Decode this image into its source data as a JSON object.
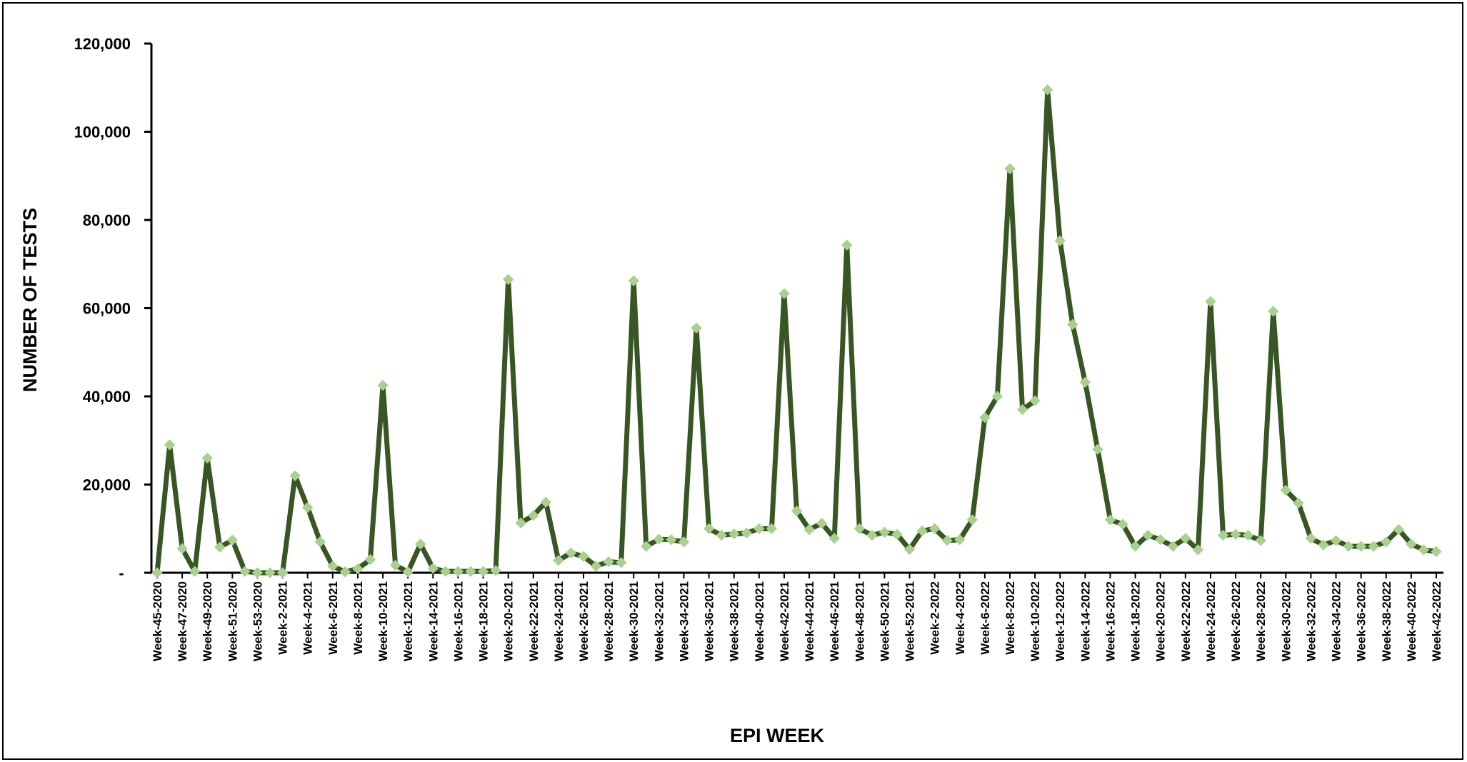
{
  "chart_data": {
    "type": "line",
    "xlabel": "EPI WEEK",
    "ylabel": "NUMBER OF TESTS",
    "ylim": [
      0,
      120000
    ],
    "yticks": [
      {
        "value": 0,
        "label": "-"
      },
      {
        "value": 20000,
        "label": "20,000"
      },
      {
        "value": 40000,
        "label": "40,000"
      },
      {
        "value": 60000,
        "label": "60,000"
      },
      {
        "value": 80000,
        "label": "80,000"
      },
      {
        "value": 100000,
        "label": "100,000"
      },
      {
        "value": 120000,
        "label": "120,000"
      }
    ],
    "grid": false,
    "legend": "none",
    "colors": {
      "line": "#375623",
      "marker": "#a9d08e",
      "axis": "#000000"
    },
    "x": [
      "Week-45-2020",
      "Week-46-2020",
      "Week-47-2020",
      "Week-48-2020",
      "Week-49-2020",
      "Week-50-2020",
      "Week-51-2020",
      "Week-52-2020",
      "Week-53-2020",
      "Week-1-2021",
      "Week-2-2021",
      "Week-3-2021",
      "Week-4-2021",
      "Week-5-2021",
      "Week-6-2021",
      "Week-7-2021",
      "Week-8-2021",
      "Week-9-2021",
      "Week-10-2021",
      "Week-11-2021",
      "Week-12-2021",
      "Week-13-2021",
      "Week-14-2021",
      "Week-15-2021",
      "Week-16-2021",
      "Week-17-2021",
      "Week-18-2021",
      "Week-19-2021",
      "Week-20-2021",
      "Week-21-2021",
      "Week-22-2021",
      "Week-23-2021",
      "Week-24-2021",
      "Week-25-2021",
      "Week-26-2021",
      "Week-27-2021",
      "Week-28-2021",
      "Week-29-2021",
      "Week-30-2021",
      "Week-31-2021",
      "Week-32-2021",
      "Week-33-2021",
      "Week-34-2021",
      "Week-35-2021",
      "Week-36-2021",
      "Week-37-2021",
      "Week-38-2021",
      "Week-39-2021",
      "Week-40-2021",
      "Week-41-2021",
      "Week-42-2021",
      "Week-43-2021",
      "Week-44-2021",
      "Week-45-2021",
      "Week-46-2021",
      "Week-47-2021",
      "Week-48-2021",
      "Week-49-2021",
      "Week-50-2021",
      "Week-51-2021",
      "Week-52-2021",
      "Week-1-2022",
      "Week-2-2022",
      "Week-3-2022",
      "Week-4-2022",
      "Week-5-2022",
      "Week-6-2022",
      "Week-7-2022",
      "Week-8-2022",
      "Week-9-2022",
      "Week-10-2022",
      "Week-11-2022",
      "Week-12-2022",
      "Week-13-2022",
      "Week-14-2022",
      "Week-15-2022",
      "Week-16-2022",
      "Week-17-2022",
      "Week-18-2022",
      "Week-19-2022",
      "Week-20-2022",
      "Week-21-2022",
      "Week-22-2022",
      "Week-23-2022",
      "Week-24-2022",
      "Week-25-2022",
      "Week-26-2022",
      "Week-27-2022",
      "Week-28-2022",
      "Week-29-2022",
      "Week-30-2022",
      "Week-31-2022",
      "Week-32-2022",
      "Week-33-2022",
      "Week-34-2022",
      "Week-35-2022",
      "Week-36-2022",
      "Week-37-2022",
      "Week-38-2022",
      "Week-39-2022",
      "Week-40-2022",
      "Week-41-2022",
      "Week-42-2022"
    ],
    "x_tick_labels": [
      "Week-45-2020",
      "Week-47-2020",
      "Week-49-2020",
      "Week-51-2020",
      "Week-53-2020",
      "Week-2-2021",
      "Week-4-2021",
      "Week-6-2021",
      "Week-8-2021",
      "Week-10-2021",
      "Week-12-2021",
      "Week-14-2021",
      "Week-16-2021",
      "Week-18-2021",
      "Week-20-2021",
      "Week-22-2021",
      "Week-24-2021",
      "Week-26-2021",
      "Week-28-2021",
      "Week-30-2021",
      "Week-32-2021",
      "Week-34-2021",
      "Week-36-2021",
      "Week-38-2021",
      "Week-40-2021",
      "Week-42-2021",
      "Week-44-2021",
      "Week-46-2021",
      "Week-48-2021",
      "Week-50-2021",
      "Week-52-2021",
      "Week-2-2022",
      "Week-4-2022",
      "Week-6-2022",
      "Week-8-2022",
      "Week-10-2022",
      "Week-12-2022",
      "Week-14-2022",
      "Week-16-2022",
      "Week-18-2022",
      "Week-20-2022",
      "Week-22-2022",
      "Week-24-2022",
      "Week-26-2022",
      "Week-28-2022",
      "Week-30-2022",
      "Week-32-2022",
      "Week-34-2022",
      "Week-36-2022",
      "Week-38-2022",
      "Week-40-2022",
      "Week-42-2022"
    ],
    "series": [
      {
        "values": [
          0,
          29000,
          5500,
          300,
          26000,
          5800,
          7400,
          300,
          0,
          0,
          0,
          22000,
          14800,
          7000,
          1500,
          200,
          900,
          3000,
          42500,
          1700,
          200,
          6500,
          1000,
          300,
          300,
          300,
          300,
          500,
          66500,
          11300,
          13000,
          16000,
          2800,
          4500,
          3700,
          1500,
          2500,
          2300,
          66200,
          6000,
          7600,
          7500,
          7000,
          55500,
          10000,
          8500,
          8800,
          9000,
          10000,
          10000,
          63300,
          14000,
          9800,
          11200,
          7800,
          74300,
          10000,
          8500,
          9200,
          8700,
          5300,
          9500,
          10000,
          7300,
          7500,
          12000,
          35200,
          40000,
          91600,
          37000,
          39000,
          109500,
          75300,
          56300,
          43200,
          28000,
          12000,
          11000,
          6000,
          8500,
          7500,
          6000,
          7800,
          5200,
          61500,
          8500,
          8700,
          8500,
          7300,
          59300,
          18700,
          15800,
          7800,
          6300,
          7300,
          6000,
          6000,
          6000,
          7000,
          9800,
          6500,
          5200,
          4800
        ]
      }
    ]
  }
}
